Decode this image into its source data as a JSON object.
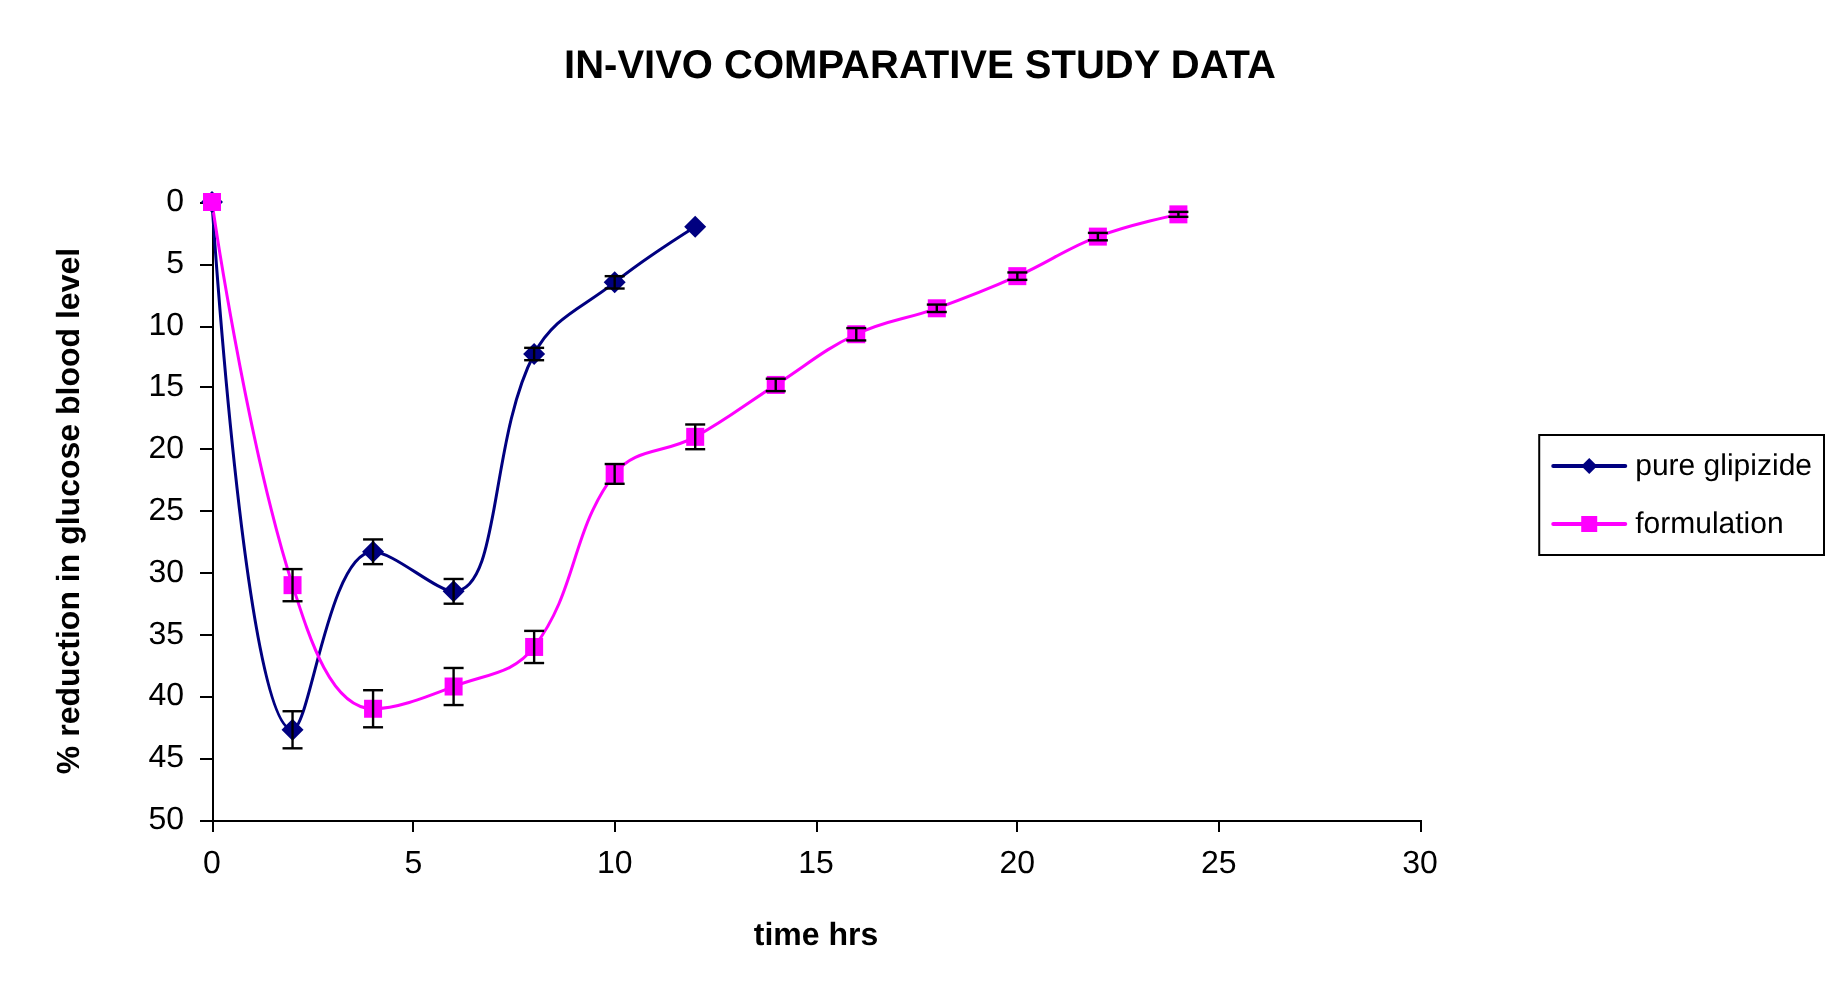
{
  "chart_data": {
    "type": "line",
    "title": "IN-VIVO COMPARATIVE STUDY DATA",
    "xlabel": "time hrs",
    "ylabel": "% reduction in glucose blood level",
    "xlim": [
      0,
      30
    ],
    "xticks": [
      0,
      5,
      10,
      15,
      20,
      25,
      30
    ],
    "ylim": [
      50,
      0
    ],
    "yticks": [
      0,
      5,
      10,
      15,
      20,
      25,
      30,
      35,
      40,
      45,
      50
    ],
    "grid": false,
    "legend": "right",
    "series": [
      {
        "name": "pure glipizide",
        "color": "#000080",
        "marker": "diamond",
        "x": [
          0,
          2,
          4,
          6,
          8,
          10,
          12
        ],
        "values": [
          0,
          42.7,
          28.3,
          31.5,
          12.3,
          6.5,
          2
        ],
        "errors": [
          null,
          1.5,
          1,
          1,
          0.5,
          0.5,
          null
        ]
      },
      {
        "name": "formulation",
        "color": "#ff00ff",
        "marker": "square",
        "x": [
          0,
          2,
          4,
          6,
          8,
          10,
          12,
          14,
          16,
          18,
          20,
          22,
          24
        ],
        "values": [
          0,
          31,
          41,
          39.2,
          36,
          22,
          19,
          14.8,
          10.7,
          8.6,
          6,
          2.8,
          1
        ],
        "errors": [
          null,
          1.3,
          1.5,
          1.5,
          1.3,
          0.8,
          1,
          0.5,
          0.5,
          0.3,
          0.3,
          0.3,
          0.2
        ]
      }
    ]
  }
}
